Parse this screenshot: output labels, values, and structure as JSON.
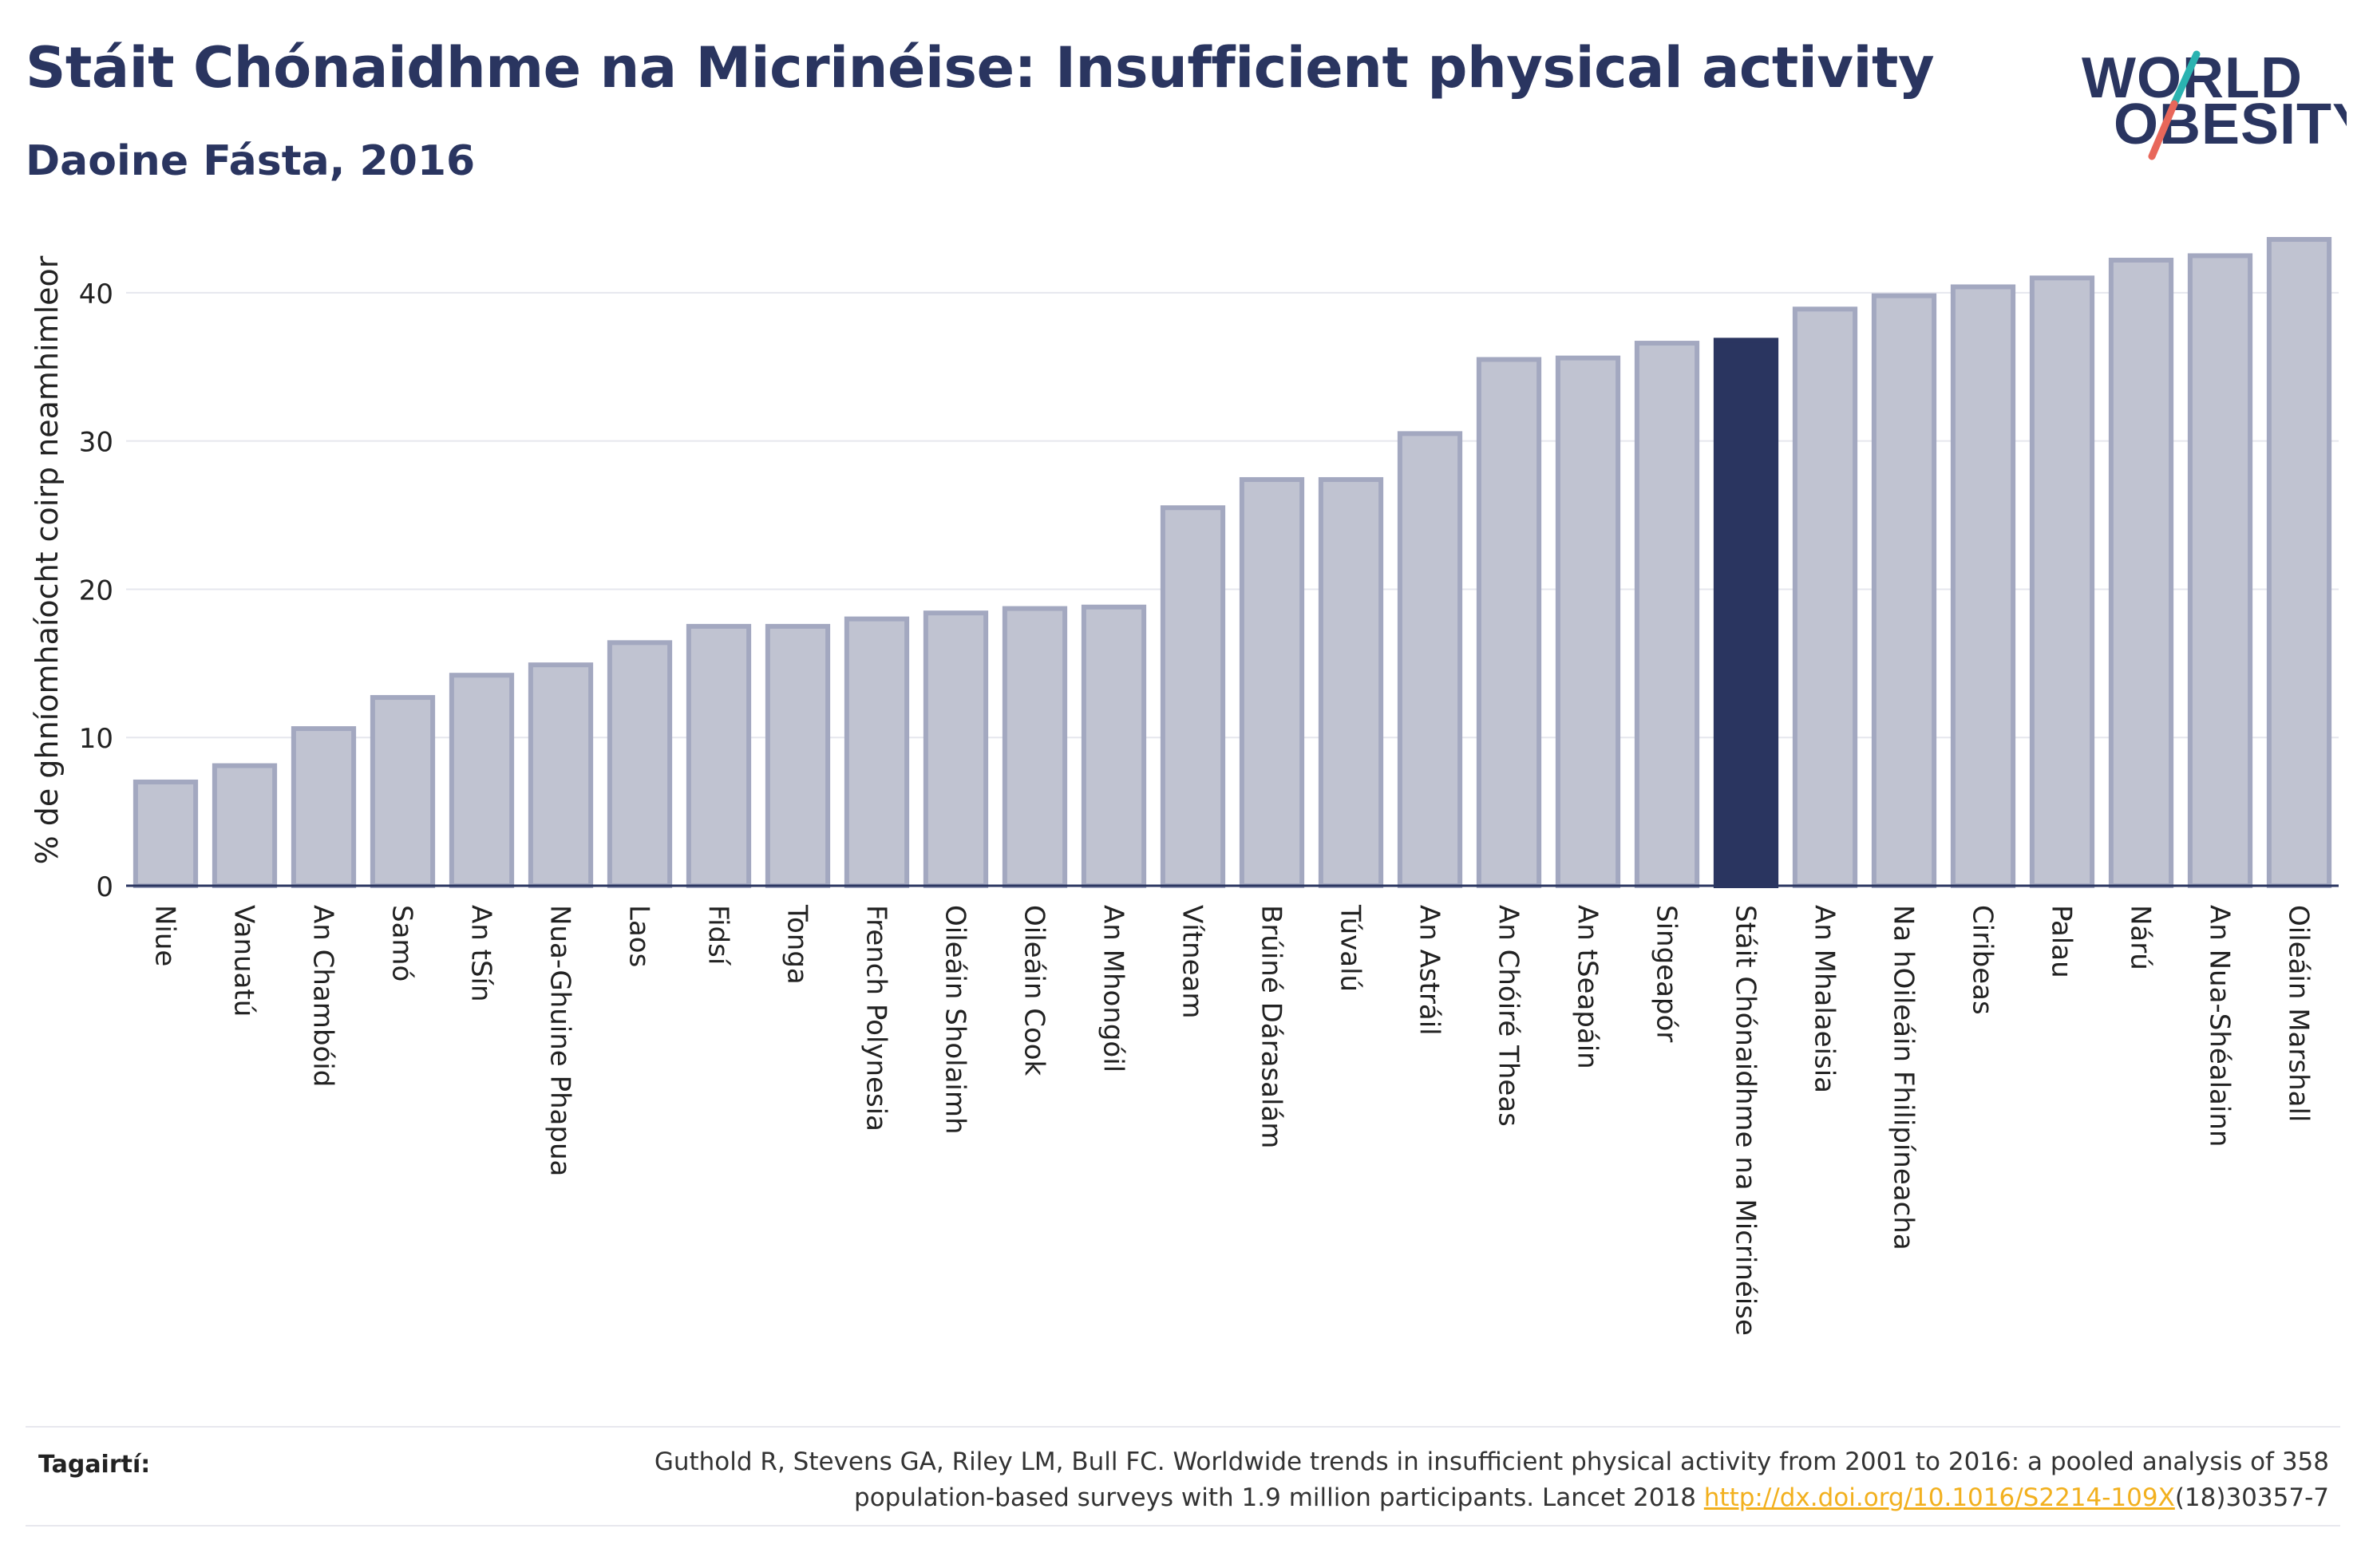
{
  "header": {
    "title": "Stáit Chónaidhme na Micrinéise: Insufficient physical activity",
    "subtitle": "Daoine Fásta, 2016"
  },
  "logo": {
    "line1": "WORLD",
    "line2": "OBESITY"
  },
  "colors": {
    "highlight": "#2a3560",
    "bar_fill": "#c0c3d1",
    "bar_stroke": "#a3a8c0",
    "slash_teal": "#2ab3b1",
    "slash_red": "#e8675a"
  },
  "chart_data": {
    "type": "bar",
    "ylabel": "% de ghníomhaíocht coirp neamhimleor",
    "ylim": [
      0,
      45
    ],
    "yticks": [
      0,
      10,
      20,
      30,
      40
    ],
    "grid": true,
    "highlight": "Stáit Chónaidhme na Micrinéise",
    "categories": [
      "Niue",
      "Vanuatú",
      "An Chambóid",
      "Samó",
      "An tSín",
      "Nua-Ghuine Phapua",
      "Laos",
      "Fidsí",
      "Tonga",
      "French Polynesia",
      "Oileáin Sholaimh",
      "Oileáin Cook",
      "An Mhongóil",
      "Vítneam",
      "Brúiné Dárasalám",
      "Túvalú",
      "An Astráil",
      "An Chóiré Theas",
      "An tSeapáin",
      "Singeapór",
      "Stáit Chónaidhme na Micrinéise",
      "An Mhalaeisia",
      "Na hOileáin Fhilipíneacha",
      "Ciribeas",
      "Palau",
      "Nárú",
      "An Nua-Shéalainn",
      "Oileáin Marshall"
    ],
    "values": [
      7.0,
      8.1,
      10.6,
      12.7,
      14.2,
      14.9,
      16.4,
      17.5,
      17.5,
      18.0,
      18.4,
      18.7,
      18.8,
      25.5,
      27.4,
      27.4,
      30.5,
      35.5,
      35.6,
      36.6,
      36.8,
      38.9,
      39.8,
      40.4,
      41.0,
      42.2,
      42.5,
      43.6
    ]
  },
  "references": {
    "label": "Tagairtí:",
    "line1": "Guthold R, Stevens GA, Riley LM, Bull FC. Worldwide trends in insufficient physical activity from 2001 to 2016: a pooled analysis of 358",
    "line2_prefix": "population-based surveys with 1.9 million participants. Lancet 2018 ",
    "link": "http://dx.doi.org/10.1016/S2214-109X",
    "line2_suffix": "(18)30357-7"
  }
}
